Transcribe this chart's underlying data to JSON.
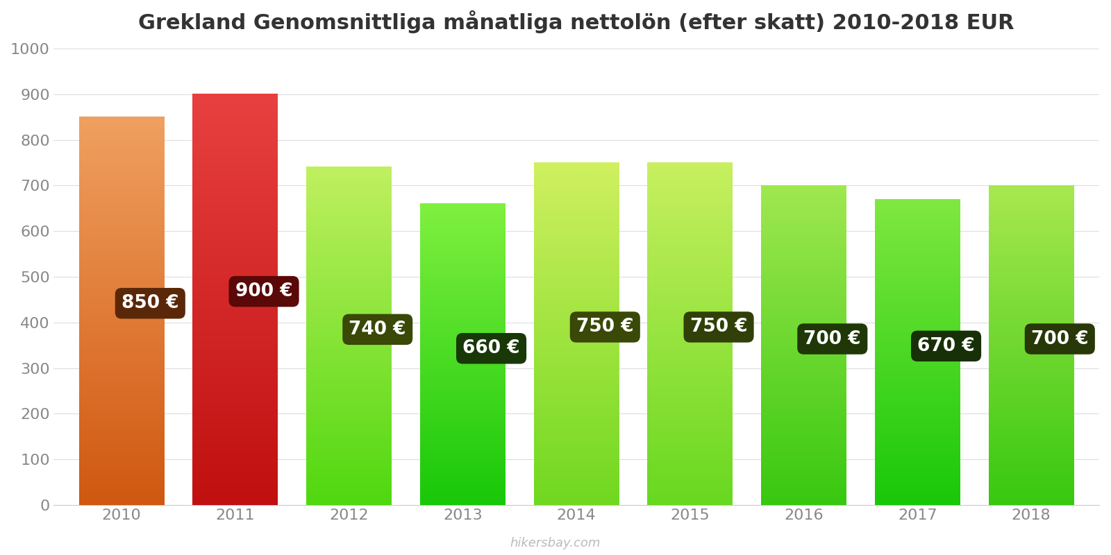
{
  "title": "Grekland Genomsnittliga månatliga nettolön (efter skatt) 2010-2018 EUR",
  "years": [
    2010,
    2011,
    2012,
    2013,
    2014,
    2015,
    2016,
    2017,
    2018
  ],
  "values": [
    850,
    900,
    740,
    660,
    750,
    750,
    700,
    670,
    700
  ],
  "bar_colors_top": [
    "#F0A060",
    "#E84040",
    "#C0F060",
    "#80F040",
    "#D0F060",
    "#C8F060",
    "#A0E850",
    "#80E840",
    "#A8E850"
  ],
  "bar_colors_bottom": [
    "#D05810",
    "#C01010",
    "#50D810",
    "#18C808",
    "#70D820",
    "#68D820",
    "#38C810",
    "#18C808",
    "#38C810"
  ],
  "label_bg_colors": [
    "#5A2808",
    "#5A0808",
    "#3A4808",
    "#183808",
    "#3A4808",
    "#304008",
    "#203808",
    "#183008",
    "#283808"
  ],
  "ylim": [
    0,
    1000
  ],
  "yticks": [
    0,
    100,
    200,
    300,
    400,
    500,
    600,
    700,
    800,
    900,
    1000
  ],
  "watermark": "hikersbay.com",
  "background_color": "#ffffff",
  "title_fontsize": 22,
  "tick_fontsize": 16,
  "label_fontsize": 19
}
